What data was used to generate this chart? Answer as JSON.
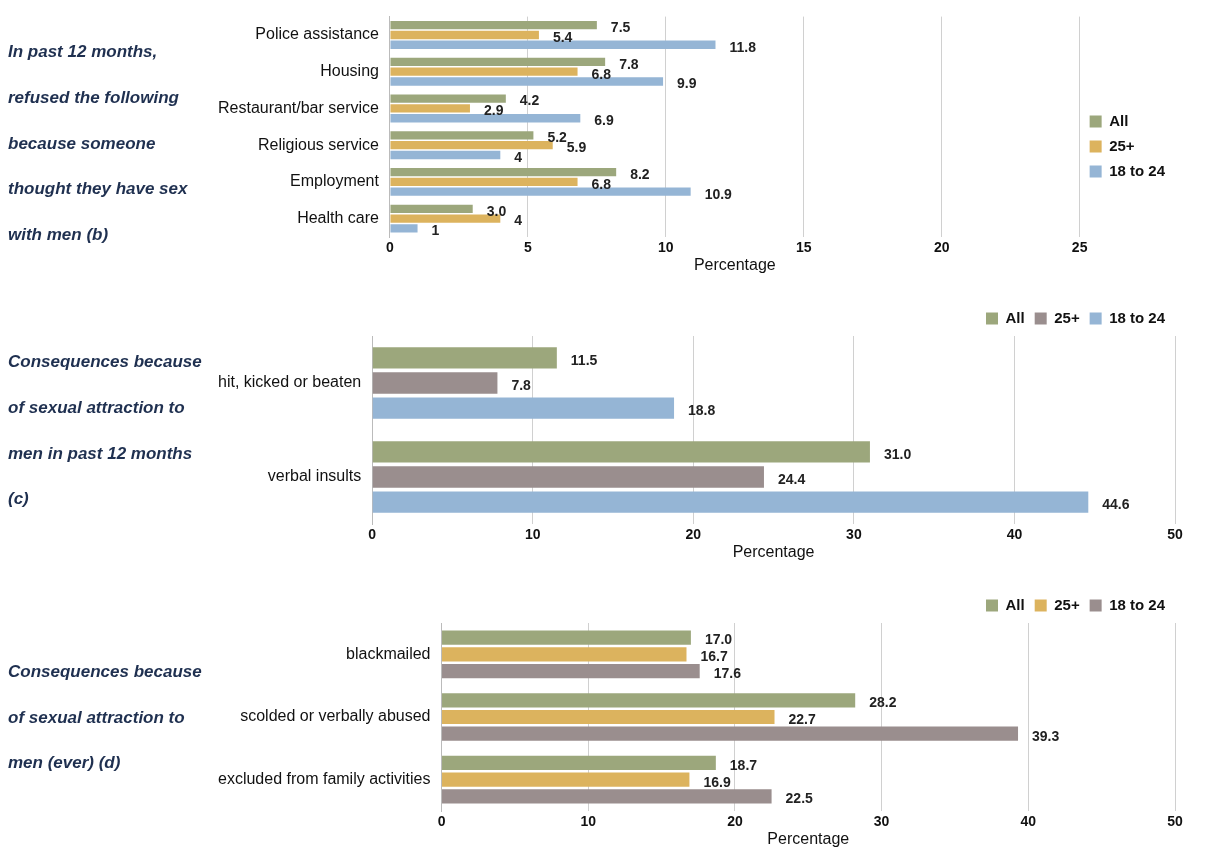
{
  "chart_data": [
    {
      "type": "bar",
      "orientation": "horizontal",
      "title": "In past 12 months, refused the following because someone thought they have sex with men (b)",
      "xlabel": "Percentage",
      "categories": [
        "Police assistance",
        "Housing",
        "Restaurant/bar service",
        "Religious service",
        "Employment",
        "Health care"
      ],
      "series": [
        {
          "name": "All",
          "color": "#9ca77c",
          "values": [
            7.5,
            7.8,
            4.2,
            5.2,
            8.2,
            3.0
          ],
          "value_labels": [
            "7.5",
            "7.8",
            "4.2",
            "5.2",
            "8.2",
            "3.0"
          ]
        },
        {
          "name": "25+",
          "color": "#dcb35e",
          "values": [
            5.4,
            6.8,
            2.9,
            5.9,
            6.8,
            4
          ],
          "value_labels": [
            "5.4",
            "6.8",
            "2.9",
            "5.9",
            "6.8",
            "4"
          ]
        },
        {
          "name": "18 to 24",
          "color": "#95b5d5",
          "values": [
            11.8,
            9.9,
            6.9,
            4,
            10.9,
            1
          ],
          "value_labels": [
            "11.8",
            "9.9",
            "6.9",
            "4",
            "10.9",
            "1"
          ]
        }
      ],
      "xlim": [
        0,
        25
      ],
      "xticks": [
        0,
        5,
        10,
        15,
        20,
        25
      ],
      "grid": "x",
      "legend": "right"
    },
    {
      "type": "bar",
      "orientation": "horizontal",
      "title": "Consequences because of sexual attraction to men in past 12 months (c)",
      "xlabel": "Percentage",
      "categories": [
        "hit, kicked or beaten",
        "verbal insults"
      ],
      "series": [
        {
          "name": "All",
          "color": "#9ca77c",
          "values": [
            11.5,
            31.0
          ],
          "value_labels": [
            "11.5",
            "31.0"
          ]
        },
        {
          "name": "25+",
          "color": "#9a8e8e",
          "values": [
            7.8,
            24.4
          ],
          "value_labels": [
            "7.8",
            "24.4"
          ]
        },
        {
          "name": "18 to 24",
          "color": "#95b5d5",
          "values": [
            18.8,
            44.6
          ],
          "value_labels": [
            "18.8",
            "44.6"
          ]
        }
      ],
      "xlim": [
        0,
        50
      ],
      "xticks": [
        0,
        10,
        20,
        30,
        40,
        50
      ],
      "grid": "x",
      "legend": "top right"
    },
    {
      "type": "bar",
      "orientation": "horizontal",
      "title": "Consequences because of sexual attraction to men (ever) (d)",
      "xlabel": "Percentage",
      "categories": [
        "blackmailed",
        "scolded or verbally abused",
        "excluded from family activities"
      ],
      "series": [
        {
          "name": "All",
          "color": "#9ca77c",
          "values": [
            17.0,
            28.2,
            18.7
          ],
          "value_labels": [
            "17.0",
            "28.2",
            "18.7"
          ]
        },
        {
          "name": "25+",
          "color": "#dcb35e",
          "values": [
            16.7,
            22.7,
            16.9
          ],
          "value_labels": [
            "16.7",
            "22.7",
            "16.9"
          ]
        },
        {
          "name": "18 to 24",
          "color": "#9a8e8e",
          "values": [
            17.6,
            39.3,
            22.5
          ],
          "value_labels": [
            "17.6",
            "39.3",
            "22.5"
          ]
        }
      ],
      "xlim": [
        0,
        50
      ],
      "xticks": [
        0,
        10,
        20,
        30,
        40,
        50
      ],
      "grid": "x",
      "legend": "top right"
    }
  ]
}
